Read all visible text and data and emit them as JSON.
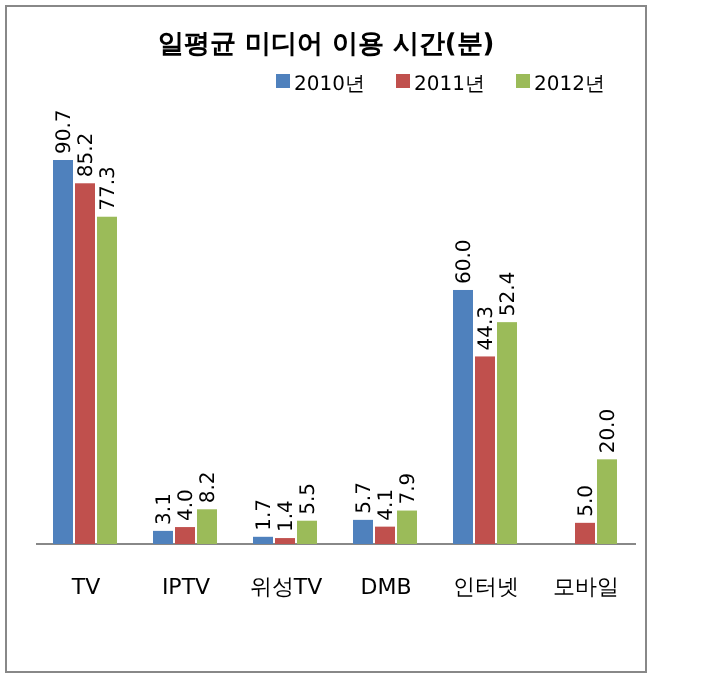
{
  "chart_data": {
    "type": "bar",
    "title": "일평균 미디어 이용 시간(분)",
    "categories": [
      "TV",
      "IPTV",
      "위성TV",
      "DMB",
      "인터넷",
      "모바일"
    ],
    "series": [
      {
        "name": "2010년",
        "color": "#4f81bd",
        "values": [
          90.7,
          3.1,
          1.7,
          5.7,
          60.0,
          null
        ],
        "value_labels": [
          "90.7",
          "3.1",
          "1.7",
          "5.7",
          "60.0",
          null
        ]
      },
      {
        "name": "2011년",
        "color": "#c0504d",
        "values": [
          85.2,
          4.0,
          1.4,
          4.1,
          44.3,
          5.0
        ],
        "value_labels": [
          "85.2",
          "4.0",
          "1.4",
          "4.1",
          "44.3",
          "5.0"
        ]
      },
      {
        "name": "2012년",
        "color": "#9bbb59",
        "values": [
          77.3,
          8.2,
          5.5,
          7.9,
          52.4,
          20.0
        ],
        "value_labels": [
          "77.3",
          "8.2",
          "5.5",
          "7.9",
          "52.4",
          "20.0"
        ]
      }
    ],
    "legend": "top",
    "grid": false
  }
}
